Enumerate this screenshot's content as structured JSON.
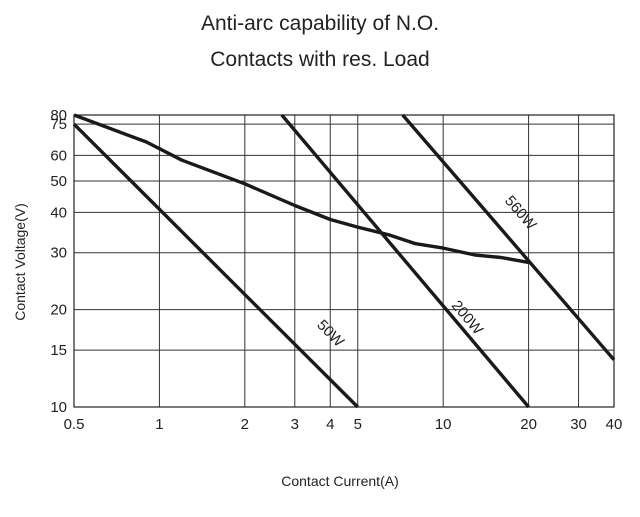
{
  "chart_data": {
    "type": "line",
    "title": [
      "Anti-arc capability of N.O.",
      "Contacts with res. Load"
    ],
    "xlabel": "Contact Current(A)",
    "ylabel": "Contact Voltage(V)",
    "x_scale": "log",
    "y_scale": "log",
    "xlim": [
      0.5,
      40
    ],
    "ylim": [
      10,
      80
    ],
    "x_ticks": [
      0.5,
      1,
      2,
      3,
      4,
      5,
      10,
      20,
      30,
      40
    ],
    "x_tick_labels": [
      "0.5",
      "1",
      "2",
      "3",
      "4",
      "5",
      "10",
      "20",
      "30",
      "40"
    ],
    "y_ticks": [
      10,
      15,
      20,
      30,
      40,
      50,
      60,
      75,
      80
    ],
    "y_tick_labels": [
      "10",
      "15",
      "20",
      "30",
      "40",
      "50",
      "60",
      "75",
      "80"
    ],
    "grid": true,
    "series": [
      {
        "name": "50W",
        "x": [
          0.5,
          5
        ],
        "y": [
          75,
          10
        ],
        "label_at": [
          3.9,
          16.5
        ]
      },
      {
        "name": "200W",
        "x": [
          2.7,
          20
        ],
        "y": [
          80,
          10
        ],
        "label_at": [
          11.8,
          18.5
        ]
      },
      {
        "name": "560W",
        "x": [
          7.2,
          40
        ],
        "y": [
          80,
          14
        ],
        "label_at": [
          18.2,
          39
        ]
      },
      {
        "name": "",
        "x": [
          0.5,
          0.9,
          1.2,
          2.0,
          3.0,
          4.0,
          5.0,
          6.5,
          8.0,
          10,
          13,
          16,
          20
        ],
        "y": [
          80,
          66,
          58,
          49,
          42,
          38,
          36,
          34,
          32,
          31,
          29.5,
          29,
          28
        ],
        "label_at": null
      }
    ]
  }
}
